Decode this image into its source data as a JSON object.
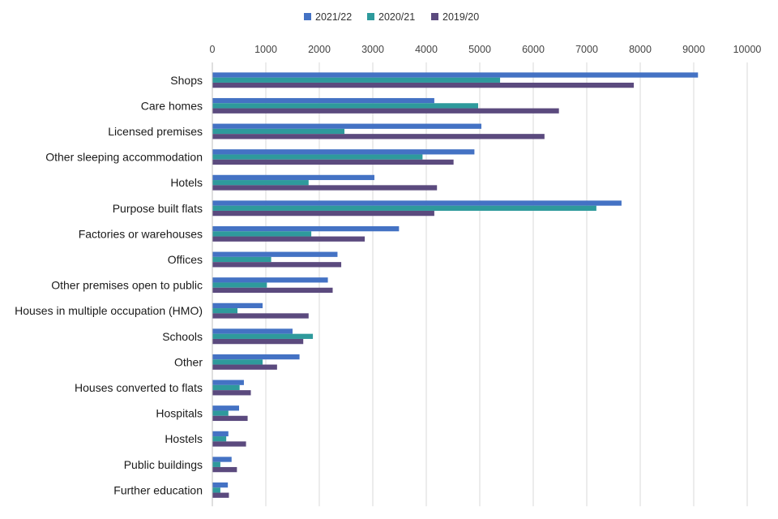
{
  "chart_data": {
    "type": "bar",
    "orientation": "horizontal",
    "title": "",
    "xlabel": "",
    "ylabel": "",
    "xlim": [
      0,
      10000
    ],
    "xticks": [
      0,
      1000,
      2000,
      3000,
      4000,
      5000,
      6000,
      7000,
      8000,
      9000,
      10000
    ],
    "grid": true,
    "legend_position": "top",
    "categories": [
      "Shops",
      "Care homes",
      "Licensed premises",
      "Other sleeping accommodation",
      "Hotels",
      "Purpose built flats",
      "Factories or warehouses",
      "Offices",
      "Other premises open to public",
      "Houses in multiple occupation (HMO)",
      "Schools",
      "Other",
      "Houses converted to flats",
      "Hospitals",
      "Hostels",
      "Public buildings",
      "Further education"
    ],
    "series": [
      {
        "name": "2021/22",
        "color": "#4472C4",
        "values": [
          9080,
          4150,
          5030,
          4900,
          3030,
          7650,
          3490,
          2340,
          2160,
          940,
          1500,
          1630,
          590,
          500,
          300,
          360,
          290
        ]
      },
      {
        "name": "2020/21",
        "color": "#2E9A9C",
        "values": [
          5380,
          4970,
          2470,
          3930,
          1800,
          7180,
          1850,
          1100,
          1020,
          470,
          1880,
          940,
          510,
          300,
          260,
          150,
          150
        ]
      },
      {
        "name": "2019/20",
        "color": "#5B4A7E",
        "values": [
          7880,
          6480,
          6210,
          4510,
          4200,
          4150,
          2850,
          2410,
          2250,
          1800,
          1700,
          1210,
          720,
          660,
          630,
          460,
          310
        ]
      }
    ]
  }
}
